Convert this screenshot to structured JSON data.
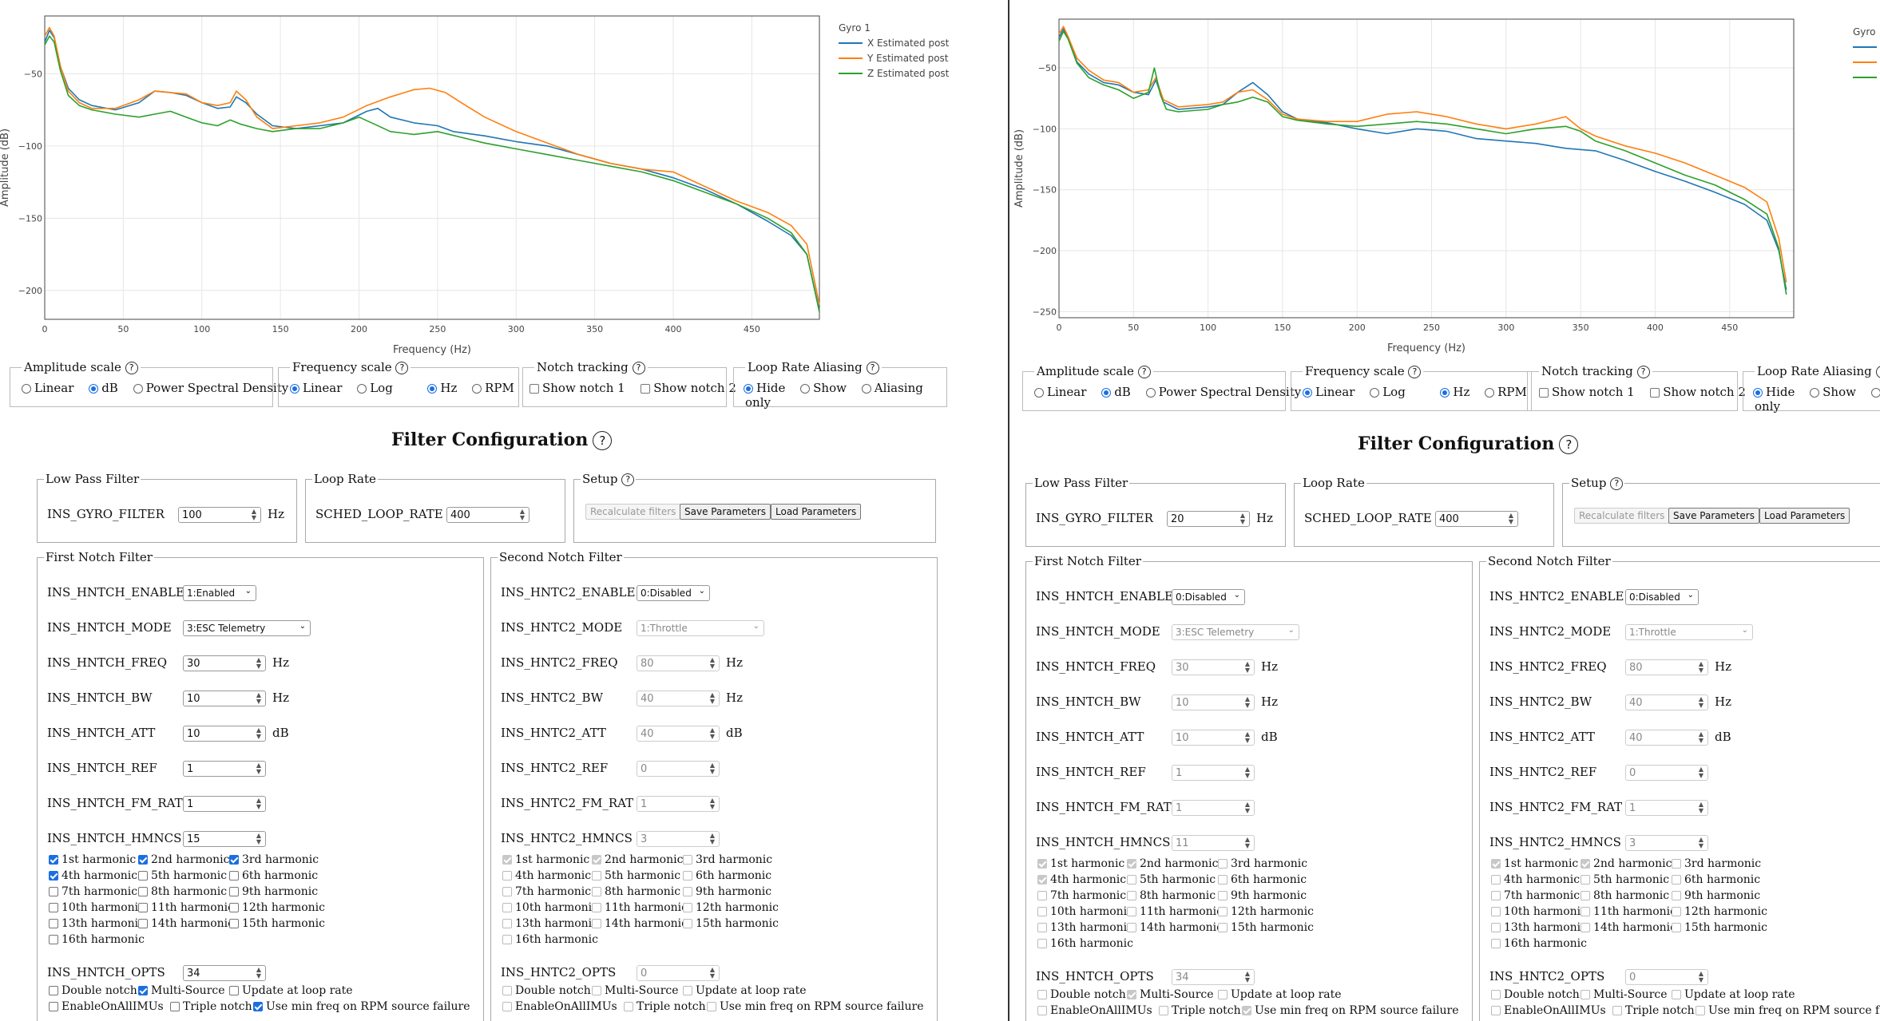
{
  "left": {
    "chart": {
      "legend_title": "Gyro 1",
      "legend": [
        "X Estimated post",
        "Y Estimated post",
        "Z Estimated post"
      ],
      "ylabel": "Amplitude (dB)",
      "xlabel": "Frequency (Hz)",
      "xticks": [
        "0",
        "50",
        "100",
        "150",
        "200",
        "250",
        "300",
        "350",
        "400",
        "450"
      ],
      "yticks": [
        "−50",
        "−100",
        "−150",
        "−200"
      ]
    },
    "controls": {
      "amp": {
        "title": "Amplitude scale",
        "opts": [
          "Linear",
          "dB",
          "Power Spectral Density"
        ],
        "sel": 1
      },
      "freq": {
        "title": "Frequency scale",
        "opts": [
          "Linear",
          "Log",
          "Hz",
          "RPM"
        ]
      },
      "notch": {
        "title": "Notch tracking",
        "opts": [
          "Show notch 1",
          "Show notch 2"
        ]
      },
      "alias": {
        "title": "Loop Rate Aliasing",
        "opts": [
          "Hide",
          "Show",
          "Aliasing",
          "only"
        ]
      }
    },
    "filter_title": "Filter Configuration",
    "lpf": {
      "title": "Low Pass Filter",
      "label": "INS_GYRO_FILTER",
      "value": "100",
      "unit": "Hz"
    },
    "loop": {
      "title": "Loop Rate",
      "label": "SCHED_LOOP_RATE",
      "value": "400"
    },
    "setup": {
      "title": "Setup",
      "recalc": "Recalculate filters",
      "save": "Save Parameters",
      "load": "Load Parameters"
    },
    "notch1": {
      "title": "First Notch Filter",
      "rows": [
        {
          "label": "INS_HNTCH_ENABLE",
          "value": "1:Enabled"
        },
        {
          "label": "INS_HNTCH_MODE",
          "value": "3:ESC Telemetry"
        },
        {
          "label": "INS_HNTCH_FREQ",
          "value": "30",
          "unit": "Hz"
        },
        {
          "label": "INS_HNTCH_BW",
          "value": "10",
          "unit": "Hz"
        },
        {
          "label": "INS_HNTCH_ATT",
          "value": "10",
          "unit": "dB"
        },
        {
          "label": "INS_HNTCH_REF",
          "value": "1"
        },
        {
          "label": "INS_HNTCH_FM_RAT",
          "value": "1"
        },
        {
          "label": "INS_HNTCH_HMNCS",
          "value": "15"
        }
      ],
      "harmonics": [
        "1st harmonic",
        "2nd harmonic",
        "3rd harmonic",
        "4th harmonic",
        "5th harmonic",
        "6th harmonic",
        "7th harmonic",
        "8th harmonic",
        "9th harmonic",
        "10th harmonic",
        "11th harmonic",
        "12th harmonic",
        "13th harmonic",
        "14th harmonic",
        "15th harmonic",
        "16th harmonic"
      ],
      "opts_label": "INS_HNTCH_OPTS",
      "opts_value": "34",
      "opts": [
        "Double notch",
        "Multi-Source",
        "Update at loop rate",
        "EnableOnAllIMUs",
        "Triple notch",
        "Use min freq on RPM source failure"
      ]
    },
    "notch2": {
      "title": "Second Notch Filter",
      "rows": [
        {
          "label": "INS_HNTC2_ENABLE",
          "value": "0:Disabled"
        },
        {
          "label": "INS_HNTC2_MODE",
          "value": "1:Throttle"
        },
        {
          "label": "INS_HNTC2_FREQ",
          "value": "80",
          "unit": "Hz"
        },
        {
          "label": "INS_HNTC2_BW",
          "value": "40",
          "unit": "Hz"
        },
        {
          "label": "INS_HNTC2_ATT",
          "value": "40",
          "unit": "dB"
        },
        {
          "label": "INS_HNTC2_REF",
          "value": "0"
        },
        {
          "label": "INS_HNTC2_FM_RAT",
          "value": "1"
        },
        {
          "label": "INS_HNTC2_HMNCS",
          "value": "3"
        }
      ],
      "opts_label": "INS_HNTC2_OPTS",
      "opts_value": "0"
    }
  },
  "right": {
    "chart": {
      "legend_title": "Gyro",
      "ylabel": "Amplitude (dB)",
      "xlabel": "Frequency (Hz)",
      "yticks": [
        "−50",
        "−100",
        "−150",
        "−200",
        "−250"
      ]
    },
    "lpf_value": "20",
    "notch1_rows": [
      "0:Disabled",
      "3:ESC Telemetry",
      "30",
      "10",
      "10",
      "1",
      "1",
      "11"
    ],
    "notch1_opts_value": "34"
  },
  "colors": {
    "x": "#1f77b4",
    "y": "#ff7f0e",
    "z": "#2ca02c",
    "accent": "#1a6fe0"
  }
}
